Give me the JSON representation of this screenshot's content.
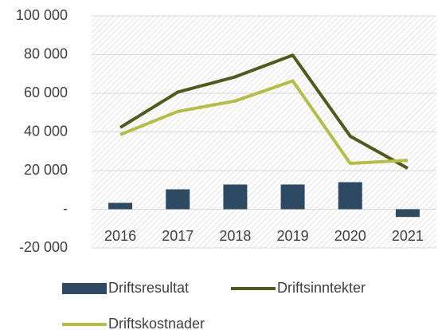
{
  "chart_data": {
    "type": "bar_line",
    "categories": [
      "2016",
      "2017",
      "2018",
      "2019",
      "2020",
      "2021"
    ],
    "series": [
      {
        "name": "Driftsresultat",
        "type": "bar",
        "color": "#2e4a62",
        "values": [
          3300,
          10300,
          12800,
          12800,
          14000,
          -4000
        ]
      },
      {
        "name": "Driftsinntekter",
        "type": "line",
        "color": "#4f5a1c",
        "values": [
          42300,
          60600,
          68500,
          79700,
          37800,
          21200
        ]
      },
      {
        "name": "Driftskostnader",
        "type": "line",
        "color": "#b5bd4a",
        "values": [
          38600,
          50600,
          56000,
          66400,
          23700,
          25300
        ]
      }
    ],
    "ylim": [
      -20000,
      100000
    ],
    "yticks": [
      {
        "value": -20000,
        "label": "-20 000"
      },
      {
        "value": 0,
        "label": "-"
      },
      {
        "value": 20000,
        "label": "20 000"
      },
      {
        "value": 40000,
        "label": "40 000"
      },
      {
        "value": 60000,
        "label": "60 000"
      },
      {
        "value": 80000,
        "label": "80 000"
      },
      {
        "value": 100000,
        "label": "100 000"
      }
    ],
    "grid": true
  }
}
